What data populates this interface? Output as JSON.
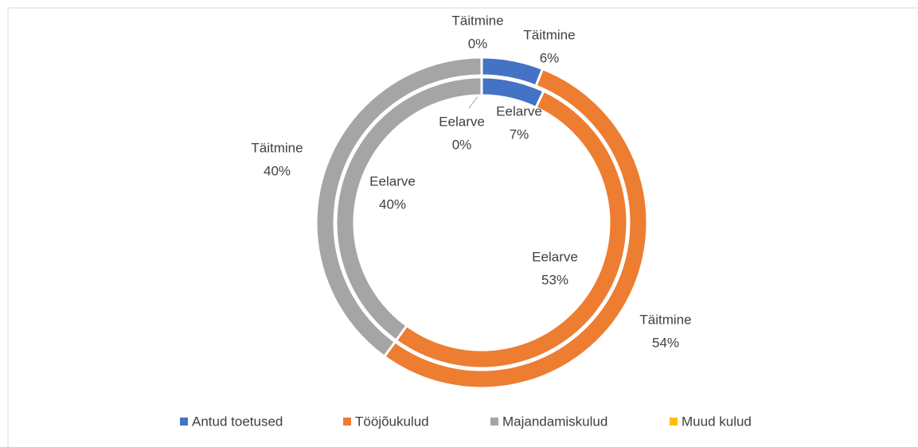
{
  "chart_data": {
    "type": "doughnut",
    "categories": [
      "Antud toetused",
      "Tööjõukulud",
      "Majandamiskulud",
      "Muud kulud"
    ],
    "colors": [
      "#4472c4",
      "#ed7d31",
      "#a5a5a5",
      "#ffc000"
    ],
    "series": [
      {
        "name": "Eelarve",
        "values": [
          7,
          53,
          40,
          0
        ],
        "value_labels": [
          "7%",
          "53%",
          "40%",
          "0%"
        ]
      },
      {
        "name": "Täitmine",
        "values": [
          6,
          54,
          40,
          0
        ],
        "value_labels": [
          "6%",
          "54%",
          "40%",
          "0%"
        ]
      }
    ],
    "legend": "bottom"
  }
}
